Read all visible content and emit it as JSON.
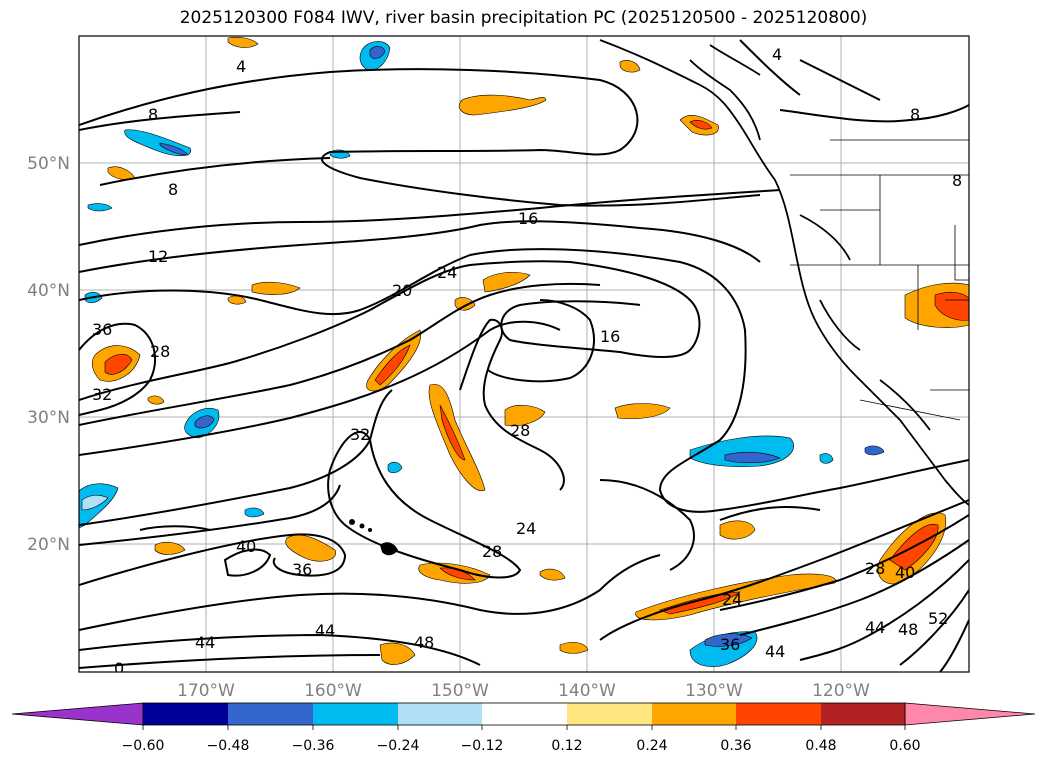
{
  "title": "2025120300 F084 IWV, river basin precipitation PC (2025120500 - 2025120800)",
  "map": {
    "lat_labels": [
      "50°N",
      "40°N",
      "30°N",
      "20°N"
    ],
    "lon_labels": [
      "170°W",
      "160°W",
      "150°W",
      "140°W",
      "130°W",
      "120°W"
    ],
    "contour_labels": [
      "4",
      "8",
      "8",
      "12",
      "16",
      "16",
      "20",
      "24",
      "24",
      "28",
      "28",
      "28",
      "32",
      "32",
      "36",
      "36",
      "40",
      "40",
      "44",
      "44",
      "44",
      "48",
      "48",
      "52",
      "24",
      "36",
      "44",
      "28",
      "4",
      "8",
      "8",
      "0"
    ]
  },
  "colorbar": {
    "colors": [
      "#9933cc",
      "#000099",
      "#3366cc",
      "#00bbf0",
      "#b0e0f8",
      "#ffffff",
      "#ffe680",
      "#ffa500",
      "#ff4500",
      "#b22222",
      "#ff88aa"
    ],
    "tick_labels": [
      "−0.60",
      "−0.48",
      "−0.36",
      "−0.24",
      "−0.12",
      "0.12",
      "0.24",
      "0.36",
      "0.48",
      "0.60"
    ]
  }
}
